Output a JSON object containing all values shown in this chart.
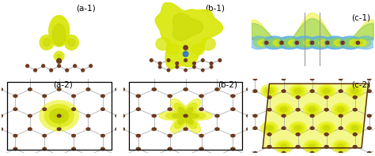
{
  "labels": [
    "(a-1)",
    "(b-1)",
    "(c-1)",
    "(a-2)",
    "(b-2)",
    "(c-2)"
  ],
  "bg_color": "#ffffff",
  "atom_color_dark": "#6b3a1f",
  "bond_color": "#aaaaaa",
  "yellow1": "#d8e600",
  "yellow2": "#c4d400",
  "yellow3": "#e8f000",
  "blue1": "#3a7abf",
  "blue2": "#5aacee",
  "green1": "#6abf3a",
  "green2": "#8ad45a",
  "label_fontsize": 7.5,
  "figsize": [
    4.74,
    1.98
  ],
  "dpi": 100
}
